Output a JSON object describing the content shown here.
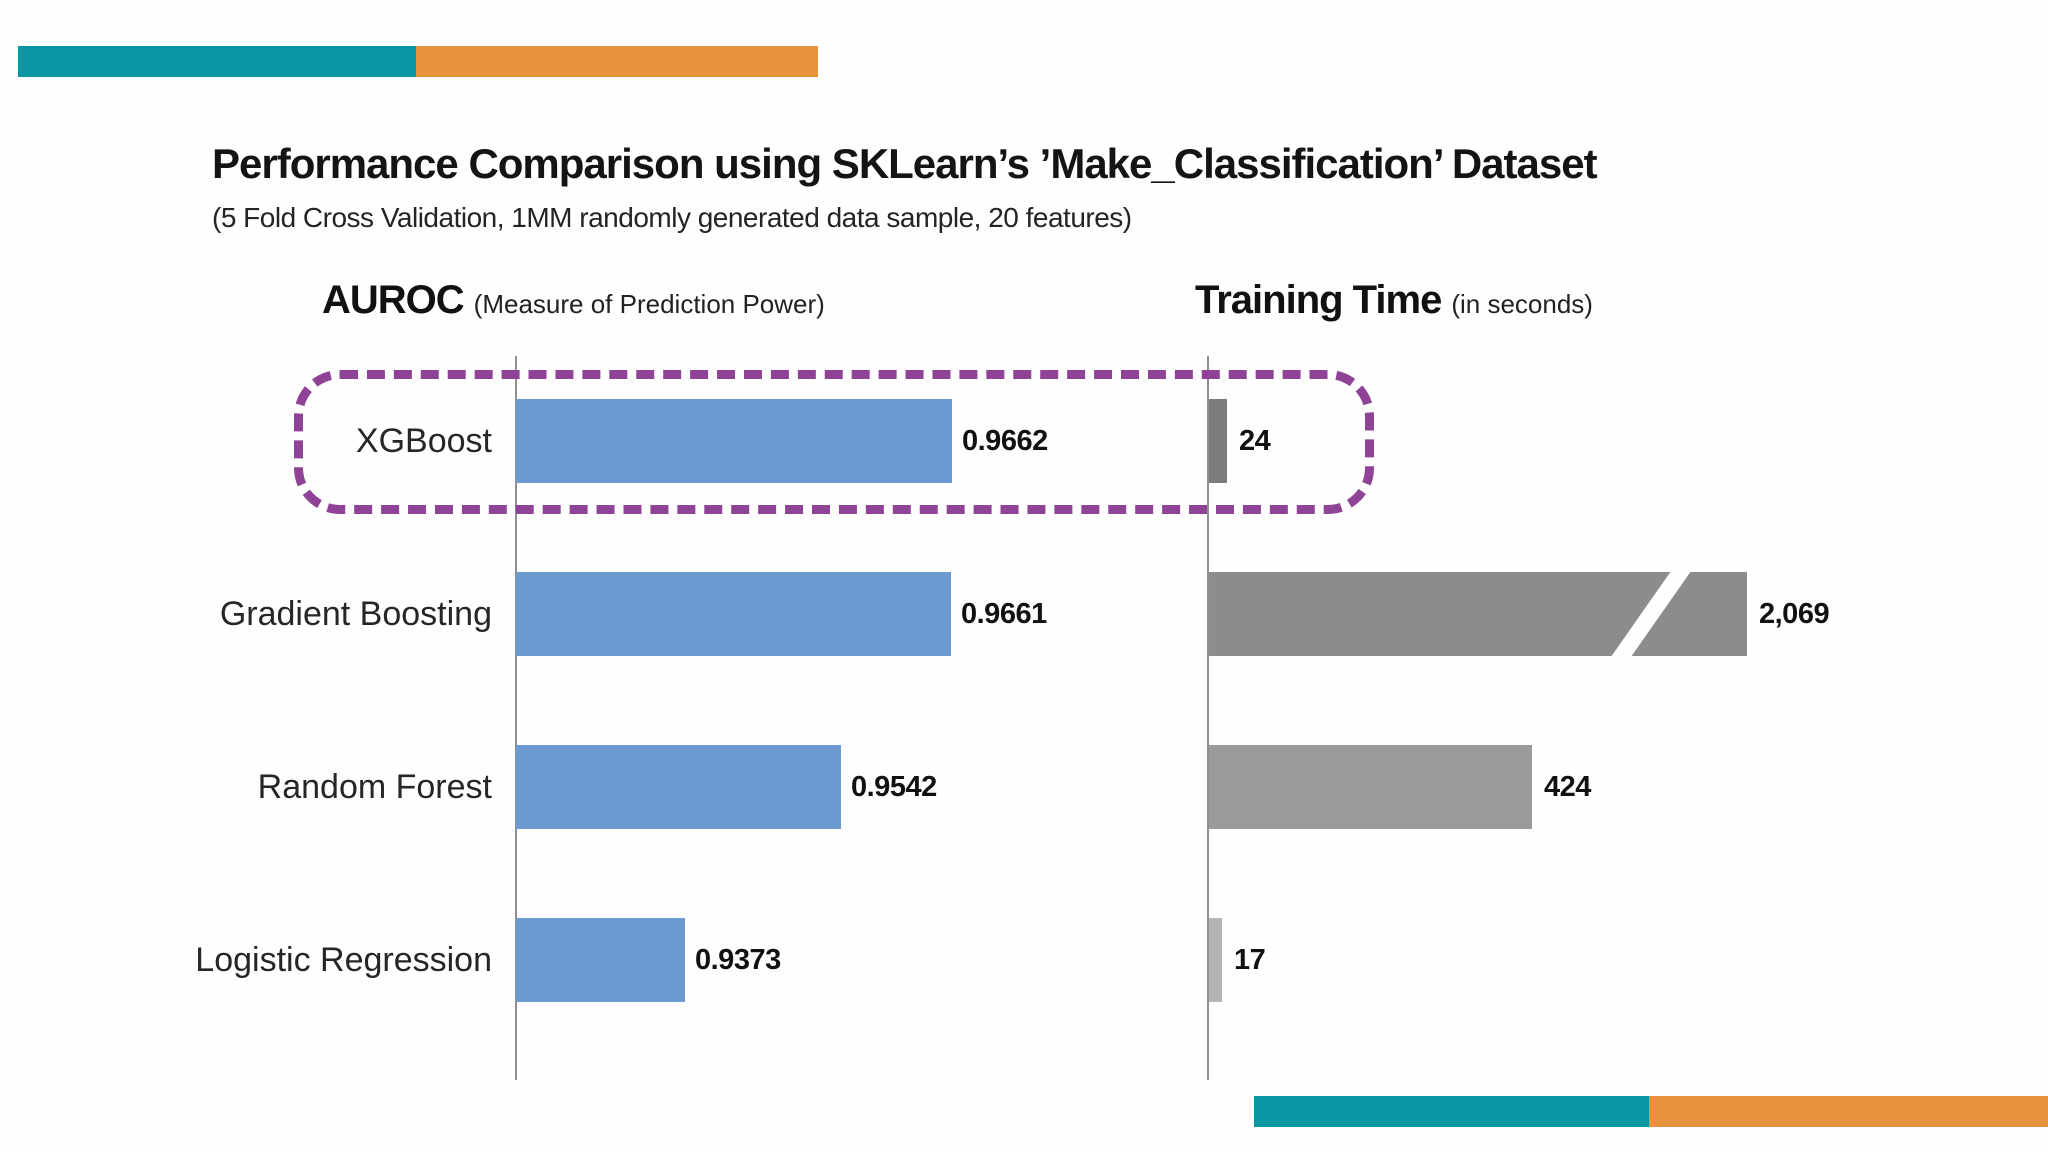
{
  "page": {
    "title": "Performance Comparison using SKLearn’s ’Make_Classification’ Dataset",
    "subtitle": "(5 Fold Cross Validation, 1MM randomly generated data sample, 20 features)"
  },
  "columns": {
    "auroc": {
      "title": "AUROC",
      "subtitle": "(Measure of Prediction Power)"
    },
    "training": {
      "title": "Training Time",
      "subtitle": "(in seconds)"
    }
  },
  "chart_data": {
    "type": "bar",
    "orientation": "horizontal",
    "categories": [
      "XGBoost",
      "Gradient Boosting",
      "Random Forest",
      "Logistic Regression"
    ],
    "series": [
      {
        "name": "AUROC",
        "values": [
          0.9662,
          0.9661,
          0.9542,
          0.9373
        ],
        "labels": [
          "0.9662",
          "0.9661",
          "0.9542",
          "0.9373"
        ],
        "color": "#6C9BD1",
        "axis_note": "baseline truncated (bars not drawn from 0)"
      },
      {
        "name": "Training Time (seconds)",
        "values": [
          24,
          2069,
          424,
          17
        ],
        "labels": [
          "24",
          "2,069",
          "424",
          "17"
        ],
        "colors": [
          "#7C7C7C",
          "#8C8C8C",
          "#9B9999",
          "#B5B3B3"
        ],
        "axis_break": [
          false,
          true,
          false,
          false
        ],
        "axis_note": "Gradient Boosting bar truncated with axis-break slash"
      }
    ],
    "highlight": {
      "category": "XGBoost",
      "style": "dashed-rounded-box",
      "color": "#8E4397"
    },
    "grid": false,
    "legend": false
  },
  "decor": {
    "teal": "#0996A3",
    "orange": "#E8923D"
  }
}
